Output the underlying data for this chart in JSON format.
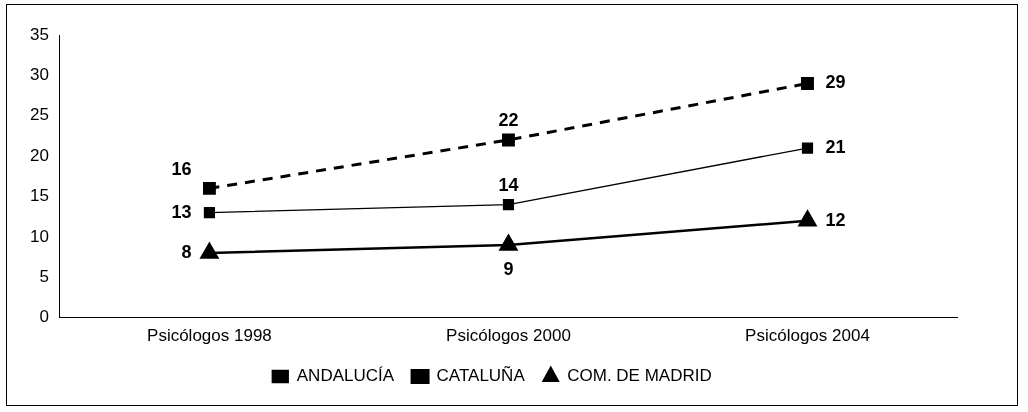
{
  "chart_data": {
    "type": "line",
    "categories": [
      "Psicólogos 1998",
      "Psicólogos 2000",
      "Psicólogos 2004"
    ],
    "series": [
      {
        "name": "ANDALUCÍA",
        "color": "#000000",
        "values": [
          13,
          14,
          21
        ],
        "marker": "square",
        "line_style": "solid"
      },
      {
        "name": "CATALUÑA",
        "color": "#000000",
        "values": [
          16,
          22,
          29
        ],
        "marker": "square",
        "line_style": "dashed"
      },
      {
        "name": "COM. DE MADRID",
        "color": "#000000",
        "values": [
          8,
          9,
          12
        ],
        "marker": "triangle",
        "line_style": "solid"
      }
    ],
    "ylim": [
      0,
      35
    ],
    "yticks": [
      0,
      5,
      10,
      15,
      20,
      25,
      30,
      35
    ],
    "grid": false,
    "legend": "bottom",
    "data_labels": true
  }
}
